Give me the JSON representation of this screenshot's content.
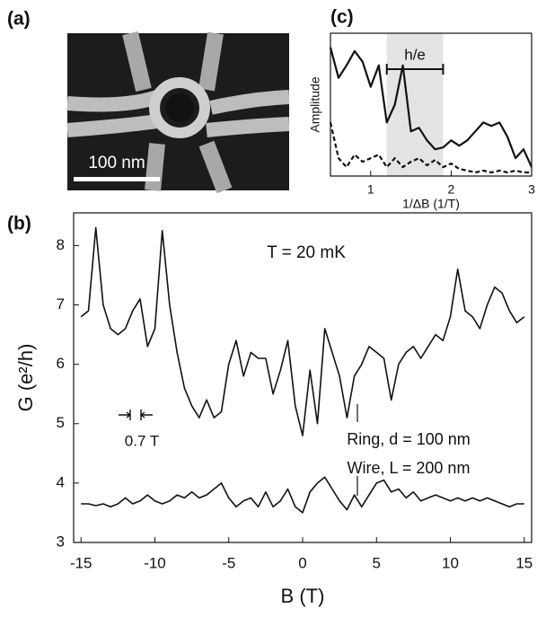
{
  "image_panel": {
    "panel_label": "(a)",
    "scale_label": "100 nm"
  },
  "chart_data": [
    {
      "type": "line",
      "panel_label": "(c)",
      "xlabel": "1/ΔB (1/T)",
      "ylabel": "Amplitude",
      "xlim": [
        0.5,
        3
      ],
      "ylim": [
        0,
        0.8
      ],
      "xticks": [
        1,
        2,
        3
      ],
      "highlight": [
        1.2,
        1.9
      ],
      "highlight_label": "h/e",
      "x": [
        0.5,
        0.6,
        0.7,
        0.8,
        0.9,
        1.0,
        1.1,
        1.2,
        1.3,
        1.4,
        1.5,
        1.6,
        1.7,
        1.8,
        1.9,
        2.0,
        2.1,
        2.2,
        2.3,
        2.4,
        2.5,
        2.6,
        2.7,
        2.8,
        2.9,
        3.0
      ],
      "series": [
        {
          "color": "#111111",
          "dash": "solid",
          "values": [
            0.72,
            0.55,
            0.62,
            0.7,
            0.64,
            0.5,
            0.62,
            0.3,
            0.4,
            0.62,
            0.25,
            0.27,
            0.2,
            0.15,
            0.16,
            0.2,
            0.17,
            0.2,
            0.25,
            0.3,
            0.28,
            0.3,
            0.22,
            0.1,
            0.15,
            0.05
          ]
        },
        {
          "color": "#111111",
          "dash": "dashed",
          "values": [
            0.3,
            0.1,
            0.05,
            0.12,
            0.08,
            0.1,
            0.12,
            0.05,
            0.1,
            0.05,
            0.08,
            0.1,
            0.06,
            0.09,
            0.05,
            0.07,
            0.04,
            0.03,
            0.02,
            0.03,
            0.02,
            0.03,
            0.02,
            0.03,
            0.02,
            0.02
          ]
        }
      ]
    },
    {
      "type": "line",
      "panel_label": "(b)",
      "xlabel": "B (T)",
      "ylabel": "G (e²/h)",
      "annotation": "T = 20 mK",
      "spacing_label": "0.7 T",
      "xlim": [
        -15.5,
        15.5
      ],
      "ylim": [
        3,
        8.55
      ],
      "xticks": [
        -15,
        -10,
        -5,
        0,
        5,
        10,
        15
      ],
      "yticks": [
        3,
        4,
        5,
        6,
        7,
        8
      ],
      "x": [
        -15,
        -14.5,
        -14,
        -13.5,
        -13,
        -12.5,
        -12,
        -11.5,
        -11,
        -10.5,
        -10,
        -9.5,
        -9,
        -8.5,
        -8,
        -7.5,
        -7,
        -6.5,
        -6,
        -5.5,
        -5,
        -4.5,
        -4,
        -3.5,
        -3,
        -2.5,
        -2,
        -1.5,
        -1,
        -0.5,
        0,
        0.5,
        1,
        1.5,
        2,
        2.5,
        3,
        3.5,
        4,
        4.5,
        5,
        5.5,
        6,
        6.5,
        7,
        7.5,
        8,
        8.5,
        9,
        9.5,
        10,
        10.5,
        11,
        11.5,
        12,
        12.5,
        13,
        13.5,
        14,
        14.5,
        15
      ],
      "series": [
        {
          "name": "Ring, d = 100 nm",
          "color": "#111111",
          "values": [
            6.8,
            6.9,
            8.3,
            7.0,
            6.6,
            6.5,
            6.6,
            6.9,
            7.1,
            6.3,
            6.6,
            8.25,
            7.0,
            6.2,
            5.6,
            5.3,
            5.1,
            5.4,
            5.1,
            5.2,
            6.0,
            6.4,
            5.8,
            6.2,
            6.1,
            6.1,
            5.5,
            5.9,
            6.4,
            5.3,
            4.8,
            5.9,
            5.0,
            6.6,
            6.2,
            5.8,
            5.1,
            5.8,
            6.0,
            6.3,
            6.2,
            6.1,
            5.4,
            6.0,
            6.2,
            6.3,
            6.1,
            6.3,
            6.5,
            6.4,
            6.8,
            7.6,
            6.9,
            6.8,
            6.6,
            7.0,
            7.3,
            7.2,
            6.9,
            6.7,
            6.8
          ]
        },
        {
          "name": "Wire, L = 200 nm",
          "color": "#111111",
          "values": [
            3.65,
            3.65,
            3.62,
            3.65,
            3.6,
            3.65,
            3.75,
            3.65,
            3.7,
            3.8,
            3.7,
            3.65,
            3.7,
            3.8,
            3.75,
            3.85,
            3.75,
            3.8,
            3.9,
            4.0,
            3.75,
            3.6,
            3.7,
            3.75,
            3.6,
            3.85,
            3.6,
            3.7,
            3.9,
            3.6,
            3.5,
            3.85,
            4.0,
            4.1,
            3.9,
            3.7,
            3.55,
            3.8,
            3.6,
            3.8,
            4.0,
            4.05,
            3.85,
            3.9,
            3.75,
            3.85,
            3.7,
            3.75,
            3.8,
            3.75,
            3.7,
            3.75,
            3.7,
            3.75,
            3.7,
            3.75,
            3.7,
            3.65,
            3.6,
            3.65,
            3.65
          ]
        }
      ]
    }
  ]
}
